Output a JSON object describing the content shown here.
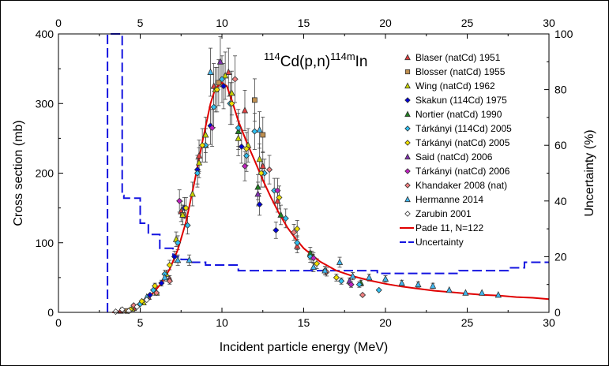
{
  "chart_data": {
    "type": "scatter",
    "title_parts": {
      "mass1": "114",
      "element1": "Cd(p,n)",
      "mass2": "114m",
      "element2": "In"
    },
    "xlabel": "Incident particle energy (MeV)",
    "ylabel": "Cross section (mb)",
    "y2label": "Uncertainty (%)",
    "xlim": [
      0,
      30
    ],
    "ylim": [
      0,
      400
    ],
    "y2lim": [
      0,
      100
    ],
    "x_ticks": [
      "0",
      "5",
      "10",
      "15",
      "20",
      "25",
      "30"
    ],
    "y_ticks": [
      "0",
      "100",
      "200",
      "300",
      "400"
    ],
    "y2_ticks": [
      "0",
      "20",
      "40",
      "60",
      "80",
      "100"
    ],
    "grid": false,
    "legend_position": "right",
    "colors": {
      "fit": "#e00000",
      "uncertainty": "#1414e0",
      "blaser": "#e04040",
      "blosser": "#c09050",
      "wing": "#c8d400",
      "skakun": "#0000d8",
      "nortier": "#208020",
      "tarkanyi114": "#30c0f0",
      "tarkanyiNat2005": "#f0e000",
      "said": "#8030b0",
      "tarkanyiNat2006": "#c020c0",
      "khandaker": "#f08080",
      "hermanne": "#40b8f0",
      "zarubin": "#ffffff"
    },
    "series": [
      {
        "name": "Blaser (natCd) 1951",
        "marker": "triangle",
        "color_key": "blaser",
        "x": [
          3.8,
          4.6,
          5.5,
          6.8,
          7.5,
          8.6,
          9.5,
          10.4,
          11.4,
          12.5,
          13.4,
          14.6
        ],
        "y": [
          2,
          6,
          22,
          48,
          145,
          225,
          325,
          345,
          290,
          210,
          160,
          95
        ]
      },
      {
        "name": "Blosser (natCd) 1955",
        "marker": "square",
        "color_key": "blosser",
        "x": [
          4.2,
          7.6,
          9.8,
          12.0,
          12.5,
          15.5
        ],
        "y": [
          2,
          140,
          330,
          305,
          255,
          80
        ]
      },
      {
        "name": "Wing (natCd) 1962",
        "marker": "triangle",
        "color_key": "wing",
        "x": [
          4.5,
          5.2,
          6.0,
          6.6,
          7.2,
          7.6,
          8.2,
          8.6,
          9.0,
          9.6,
          10.2,
          10.6,
          11.0,
          11.6,
          12.3
        ],
        "y": [
          5,
          14,
          28,
          55,
          105,
          140,
          170,
          215,
          255,
          320,
          340,
          315,
          250,
          240,
          220
        ]
      },
      {
        "name": "Skakun (114Cd) 1975",
        "marker": "diamond",
        "color_key": "skakun",
        "x": [
          5.6,
          6.3,
          7.1,
          7.7,
          8.5,
          9.3,
          10.1,
          11.2,
          12.3,
          13.3
        ],
        "y": [
          25,
          42,
          80,
          150,
          205,
          268,
          325,
          238,
          155,
          118
        ]
      },
      {
        "name": "Nortier (natCd) 1990",
        "marker": "triangle",
        "color_key": "nortier",
        "x": [
          9.0,
          11.0,
          12.2,
          13.6,
          15.4,
          18.5
        ],
        "y": [
          240,
          260,
          180,
          140,
          85,
          42
        ]
      },
      {
        "name": "Tárkányi (114Cd) 2005",
        "marker": "diamond",
        "color_key": "tarkanyi114",
        "x": [
          5.0,
          5.8,
          6.5,
          7.3,
          7.9,
          8.5,
          9.0,
          9.5,
          10.0,
          10.5,
          11.0,
          11.5,
          12.0,
          12.6,
          13.2,
          13.9,
          14.6,
          15.4,
          16.3,
          17.3,
          18.4,
          19.6
        ],
        "y": [
          12,
          32,
          55,
          100,
          125,
          200,
          240,
          295,
          335,
          300,
          265,
          225,
          260,
          200,
          175,
          135,
          100,
          80,
          60,
          45,
          40,
          32
        ]
      },
      {
        "name": "Tárkányi (natCd) 2005",
        "marker": "diamond",
        "color_key": "tarkanyiNat2005",
        "x": [
          4.4,
          5.1,
          5.9,
          6.8,
          7.8,
          8.8,
          9.7,
          10.6,
          11.5,
          12.4,
          13.5,
          14.6,
          15.8,
          17.0
        ],
        "y": [
          4,
          16,
          38,
          68,
          150,
          240,
          320,
          300,
          235,
          200,
          165,
          120,
          70,
          50
        ]
      },
      {
        "name": "Said (natCd) 2006",
        "marker": "triangle",
        "color_key": "said",
        "x": [
          9.9,
          12.2,
          17.8
        ],
        "y": [
          360,
          170,
          45
        ]
      },
      {
        "name": "Tárkányi (natCd) 2006",
        "marker": "diamond",
        "color_key": "tarkanyiNat2006",
        "x": [
          7.4,
          9.4,
          11.4,
          13.4,
          15.6,
          17.9
        ],
        "y": [
          160,
          265,
          210,
          175,
          78,
          40
        ]
      },
      {
        "name": "Khandaker 2008 (nat)",
        "marker": "diamond",
        "color_key": "khandaker",
        "x": [
          4.6,
          6.0,
          6.8,
          10.8,
          12.9,
          14.4,
          16.4,
          18.6
        ],
        "y": [
          10,
          28,
          45,
          335,
          205,
          115,
          58,
          25
        ]
      },
      {
        "name": "Hermanne 2014",
        "marker": "triangle",
        "color_key": "hermanne",
        "x": [
          5.4,
          6.5,
          7.3,
          8.0,
          9.3,
          12.3,
          15.6,
          16.3,
          17.2,
          18.0,
          19.0,
          20.0,
          21.0,
          22.0,
          22.9,
          23.9,
          24.9,
          25.9,
          26.9
        ],
        "y": [
          22,
          50,
          75,
          75,
          345,
          262,
          65,
          60,
          72,
          52,
          50,
          48,
          42,
          40,
          38,
          32,
          28,
          28,
          25
        ]
      },
      {
        "name": "Zarubin 2001",
        "marker": "diamond",
        "color_key": "zarubin",
        "x": [
          3.5,
          3.9,
          4.3,
          4.8,
          5.4
        ],
        "y": [
          1,
          4,
          2,
          8,
          18
        ]
      }
    ],
    "fit": {
      "name": "Pade 11, N=122",
      "color_key": "fit",
      "x": [
        3.3,
        3.8,
        4.3,
        4.8,
        5.3,
        5.8,
        6.3,
        6.8,
        7.3,
        7.8,
        8.3,
        8.8,
        9.3,
        9.6,
        10.0,
        10.3,
        10.6,
        11.0,
        11.5,
        12.0,
        12.5,
        13.0,
        13.5,
        14.0,
        14.5,
        15.0,
        16.0,
        17.0,
        18.0,
        19.0,
        20.0,
        21.0,
        22.0,
        23.0,
        24.0,
        25.0,
        26.0,
        27.0,
        28.0,
        29.0,
        30.0
      ],
      "y": [
        0,
        2,
        5,
        10,
        18,
        28,
        42,
        62,
        90,
        130,
        185,
        245,
        300,
        322,
        330,
        325,
        305,
        275,
        245,
        218,
        190,
        165,
        142,
        122,
        106,
        92,
        73,
        60,
        52,
        46,
        41,
        37,
        34,
        31,
        29,
        27,
        25,
        24,
        22,
        21,
        19
      ]
    },
    "uncertainty": {
      "name": "Uncertainty",
      "color_key": "uncertainty",
      "x": [
        3.0,
        3.0,
        3.9,
        3.9,
        4.0,
        4.0,
        5.0,
        5.0,
        5.5,
        5.5,
        6.2,
        6.2,
        7.0,
        7.0,
        7.5,
        7.5,
        8.0,
        8.0,
        9.0,
        9.0,
        11.0,
        11.0,
        15.0,
        15.0,
        17.0,
        17.0,
        19.5,
        19.5,
        24.5,
        24.5,
        27.5,
        27.5,
        28.5,
        28.5,
        30.0
      ],
      "y": [
        0,
        100,
        100,
        42,
        42,
        41,
        41,
        32,
        32,
        28,
        28,
        23,
        23,
        20,
        20,
        19,
        19,
        18,
        18,
        17,
        17,
        15,
        15,
        15,
        15,
        15,
        15,
        14,
        14,
        15,
        15,
        16,
        16,
        18,
        18
      ]
    }
  }
}
